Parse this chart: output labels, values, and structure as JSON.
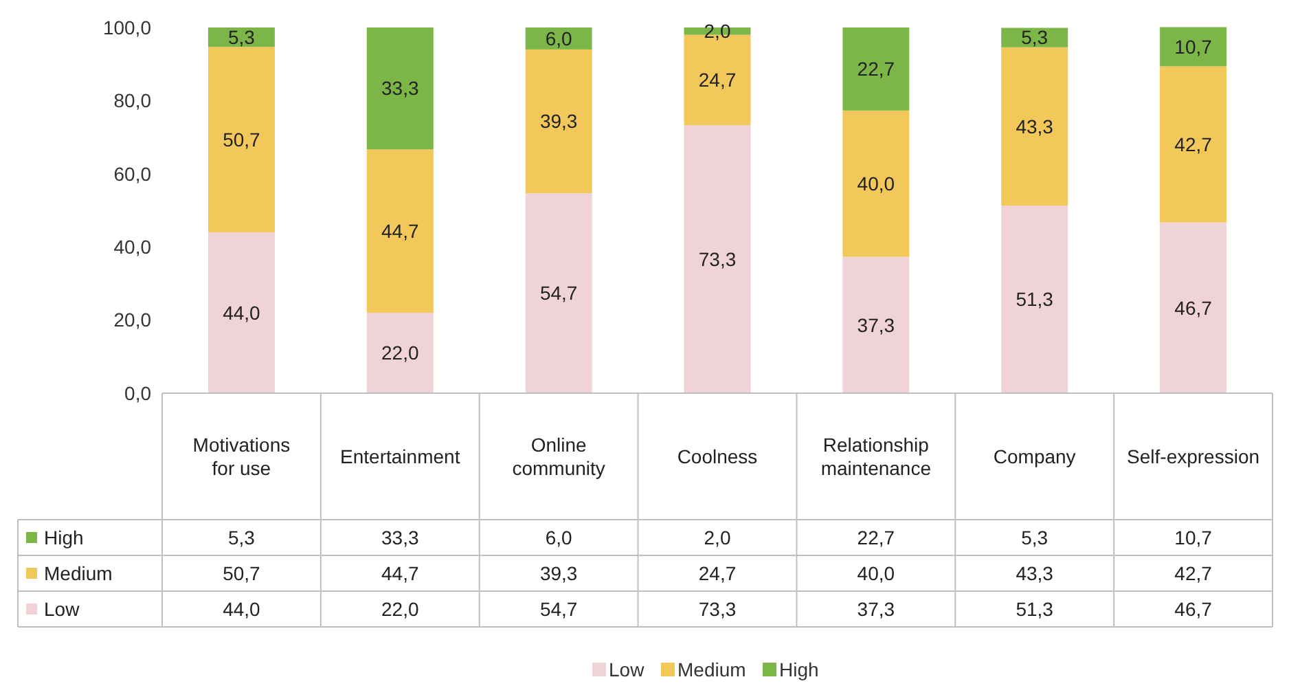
{
  "chart_data": {
    "type": "bar",
    "stacked": true,
    "categories": [
      "Motivations for use",
      "Entertainment",
      "Online community",
      "Coolness",
      "Relationship maintenance",
      "Company",
      "Self-expression"
    ],
    "series": [
      {
        "name": "Low",
        "color": "#f0d3d6",
        "values": [
          44.0,
          22.0,
          54.7,
          73.3,
          37.3,
          51.3,
          46.7
        ],
        "value_labels": [
          "44,0",
          "22,0",
          "54,7",
          "73,3",
          "37,3",
          "51,3",
          "46,7"
        ]
      },
      {
        "name": "Medium",
        "color": "#f2c85b",
        "values": [
          50.7,
          44.7,
          39.3,
          24.7,
          40.0,
          43.3,
          42.7
        ],
        "value_labels": [
          "50,7",
          "44,7",
          "39,3",
          "24,7",
          "40,0",
          "43,3",
          "42,7"
        ]
      },
      {
        "name": "High",
        "color": "#7cb548",
        "values": [
          5.3,
          33.3,
          6.0,
          2.0,
          22.7,
          5.3,
          10.7
        ],
        "value_labels": [
          "5,3",
          "33,3",
          "6,0",
          "2,0",
          "22,7",
          "5,3",
          "10,7"
        ]
      }
    ],
    "ylim": [
      0,
      100
    ],
    "yticks": [
      {
        "value": 0,
        "label": "0,0"
      },
      {
        "value": 20,
        "label": "20,0"
      },
      {
        "value": 40,
        "label": "40,0"
      },
      {
        "value": 60,
        "label": "60,0"
      },
      {
        "value": 80,
        "label": "80,0"
      },
      {
        "value": 100,
        "label": "100,0"
      }
    ],
    "legend": "bottom"
  }
}
